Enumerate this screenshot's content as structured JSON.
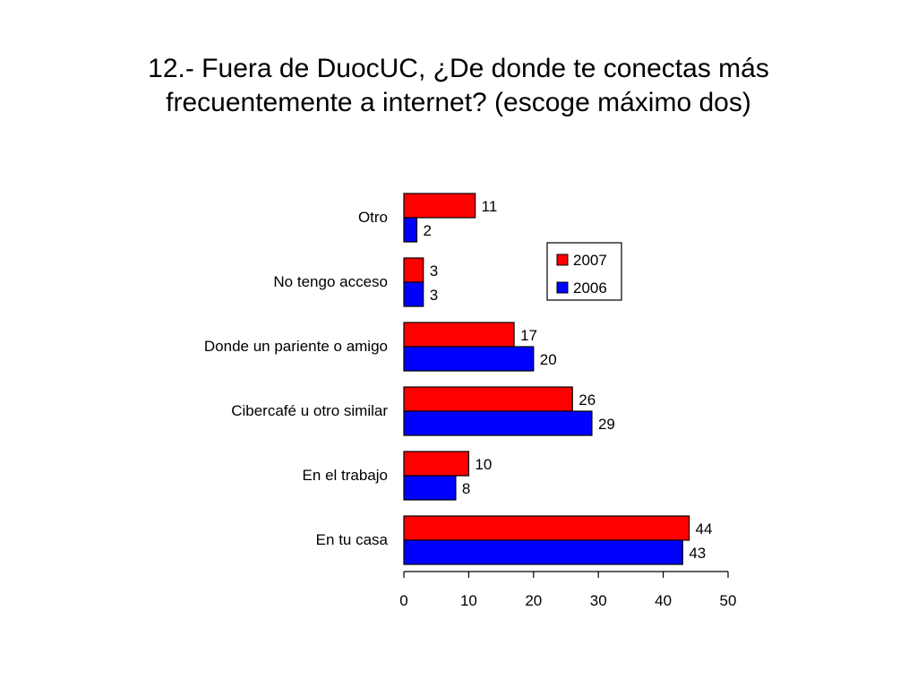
{
  "chart_data": {
    "type": "bar",
    "orientation": "horizontal",
    "title_line1": "12.- Fuera de DuocUC, ¿De donde te conectas más",
    "title_line2": "frecuentemente a internet? (escoge máximo dos)",
    "categories": [
      "Otro",
      "No tengo acceso",
      "Donde un pariente o amigo",
      "Cibercafé u otro similar",
      "En el trabajo",
      "En tu casa"
    ],
    "series": [
      {
        "name": "2007",
        "color": "#ff0000",
        "values": [
          11,
          3,
          17,
          26,
          10,
          44
        ]
      },
      {
        "name": "2006",
        "color": "#0000ff",
        "values": [
          2,
          3,
          20,
          29,
          8,
          43
        ]
      }
    ],
    "xlim": [
      0,
      50
    ],
    "xticks": [
      "0",
      "10",
      "20",
      "30",
      "40",
      "50"
    ],
    "xlabel": "",
    "ylabel": "",
    "grid": false,
    "legend_position": "right"
  }
}
